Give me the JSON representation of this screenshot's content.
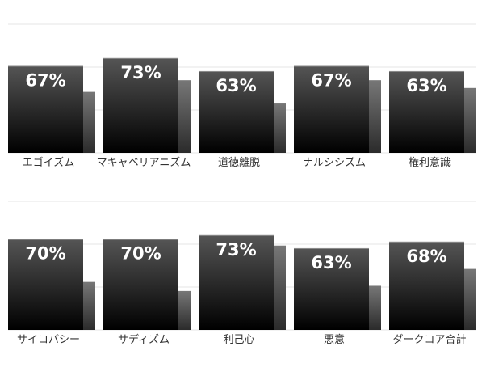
{
  "chart_data": {
    "type": "bar",
    "title": "",
    "xlabel": "",
    "ylabel": "",
    "grid": true,
    "legend": "none",
    "ylim": [
      0,
      100
    ],
    "panels": [
      {
        "categories": [
          "エゴイズム",
          "マキャベリアニズム",
          "道徳離脱",
          "ナルシシズム",
          "権利意識"
        ],
        "series": [
          {
            "values": [
              67,
              73,
              63,
              67,
              63
            ],
            "labels": [
              "67%",
              "73%",
              "63%",
              "67%",
              "63%"
            ]
          },
          {
            "values": [
              47,
              56,
              38,
              56,
              50
            ]
          }
        ]
      },
      {
        "categories": [
          "サイコパシー",
          "サディズム",
          "利己心",
          "悪意",
          "ダークコア合計"
        ],
        "series": [
          {
            "values": [
              70,
              70,
              73,
              63,
              68
            ],
            "labels": [
              "70%",
              "70%",
              "73%",
              "63%",
              "68%"
            ]
          },
          {
            "values": [
              37,
              30,
              65,
              34,
              47
            ]
          }
        ]
      }
    ],
    "colors": {
      "primary_top": "#555555",
      "primary_bottom": "#000000",
      "secondary_top": "#777777",
      "secondary_bottom": "#2b2b2b",
      "grid": "#e6e6e6"
    }
  }
}
